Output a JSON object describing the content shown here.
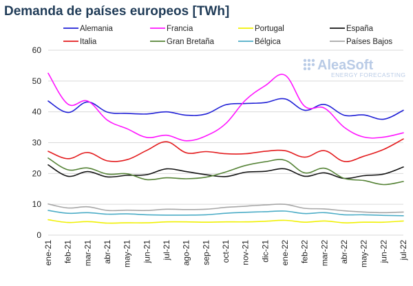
{
  "chart_data": {
    "type": "line",
    "title": "Demanda de países europeos [TWh]",
    "xlabel": "",
    "ylabel": "",
    "ylim": [
      0,
      60
    ],
    "yticks": [
      0,
      10,
      20,
      30,
      40,
      50,
      60
    ],
    "grid": true,
    "legend_placement": "top",
    "categories": [
      "ene-21",
      "feb-21",
      "mar-21",
      "abr-21",
      "may-21",
      "jun-21",
      "jul-21",
      "ago-21",
      "sep-21",
      "oct-21",
      "nov-21",
      "dic-21",
      "ene-22",
      "feb-22",
      "mar-22",
      "abr-22",
      "may-22",
      "jun-22",
      "jul-22"
    ],
    "series": [
      {
        "name": "Alemania",
        "color": "#1f1fd6",
        "values": [
          43.5,
          39.8,
          43.2,
          39.9,
          39.5,
          39.3,
          40.0,
          38.9,
          39.3,
          42.3,
          42.7,
          43.0,
          44.2,
          40.5,
          42.4,
          38.9,
          39.0,
          37.6,
          40.5
        ]
      },
      {
        "name": "Francia",
        "color": "#ff14ff",
        "values": [
          52.5,
          42.5,
          43.5,
          37.3,
          34.5,
          31.7,
          32.4,
          30.6,
          32.2,
          36.2,
          43.8,
          48.5,
          51.9,
          41.8,
          41.2,
          35.0,
          31.8,
          31.8,
          33.2
        ]
      },
      {
        "name": "Portugal",
        "color": "#f0f000",
        "values": [
          5.0,
          4.1,
          4.4,
          3.9,
          4.0,
          4.0,
          4.3,
          4.3,
          4.2,
          4.3,
          4.3,
          4.5,
          4.8,
          4.2,
          4.6,
          4.0,
          4.2,
          4.2,
          4.6
        ]
      },
      {
        "name": "España",
        "color": "#111111",
        "values": [
          22.8,
          19.1,
          20.6,
          18.9,
          19.4,
          19.6,
          21.5,
          20.6,
          19.6,
          19.0,
          20.4,
          20.7,
          21.5,
          19.1,
          20.2,
          18.4,
          19.3,
          19.8,
          22.1
        ]
      },
      {
        "name": "Italia",
        "color": "#e31a1c",
        "values": [
          27.2,
          24.8,
          26.8,
          24.1,
          24.5,
          27.5,
          30.3,
          26.7,
          27.1,
          26.4,
          26.4,
          27.2,
          27.4,
          25.3,
          27.4,
          23.9,
          25.6,
          27.8,
          31.2
        ]
      },
      {
        "name": "Gran Bretaña",
        "color": "#548235",
        "values": [
          25.0,
          21.2,
          21.8,
          19.8,
          19.9,
          18.0,
          18.6,
          18.3,
          18.8,
          20.5,
          22.6,
          23.8,
          24.3,
          20.2,
          21.7,
          18.4,
          17.7,
          16.4,
          17.4
        ]
      },
      {
        "name": "Bélgica",
        "color": "#4bacc6",
        "values": [
          8.0,
          7.1,
          7.3,
          6.8,
          6.9,
          6.6,
          6.5,
          6.5,
          6.6,
          7.1,
          7.4,
          7.6,
          7.8,
          7.0,
          7.3,
          6.6,
          6.6,
          6.4,
          6.3
        ]
      },
      {
        "name": "Países Bajos",
        "color": "#a6a6a6",
        "values": [
          10.1,
          8.8,
          9.2,
          8.0,
          8.1,
          8.0,
          8.4,
          8.3,
          8.4,
          9.0,
          9.4,
          9.8,
          10.0,
          8.7,
          8.5,
          7.9,
          7.5,
          7.3,
          7.5
        ]
      }
    ]
  },
  "watermark": {
    "brand": "AleaSoft",
    "tagline": "ENERGY FORECASTING"
  }
}
